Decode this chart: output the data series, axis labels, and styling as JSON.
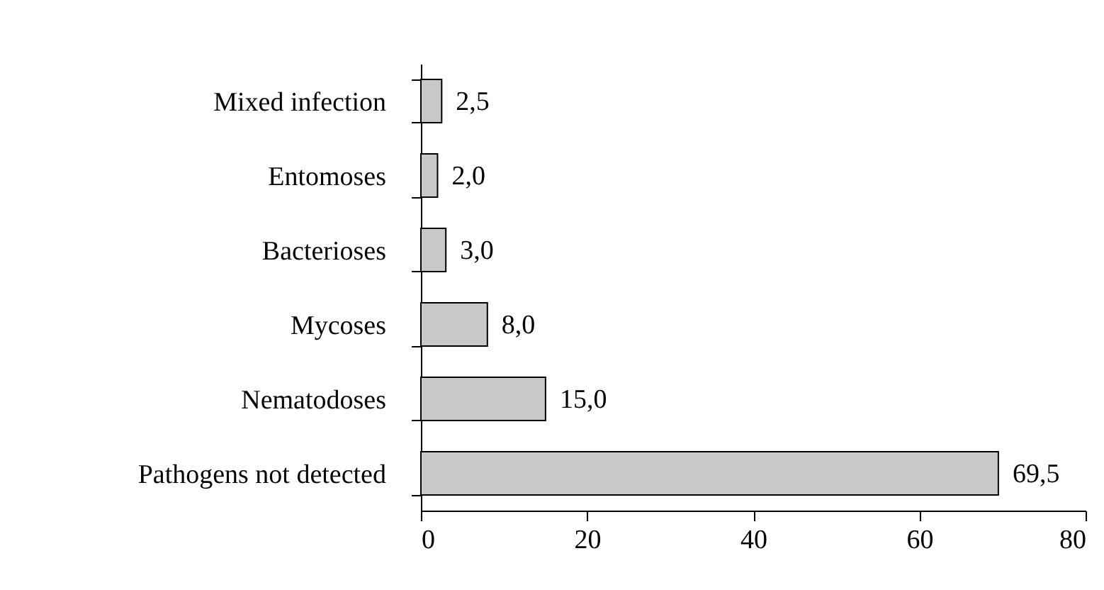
{
  "chart_data": {
    "type": "bar",
    "orientation": "horizontal",
    "categories": [
      "Mixed infection",
      "Entomoses",
      "Bacterioses",
      "Mycoses",
      "Nematodoses",
      "Pathogens not detected"
    ],
    "values": [
      2.5,
      2.0,
      3.0,
      8.0,
      15.0,
      69.5
    ],
    "value_labels": [
      "2,5",
      "2,0",
      "3,0",
      "8,0",
      "15,0",
      "69,5"
    ],
    "color": "#c8c8c8",
    "xlim": [
      0,
      80
    ],
    "xticks": [
      0,
      20,
      40,
      60,
      80
    ],
    "grid": false
  }
}
